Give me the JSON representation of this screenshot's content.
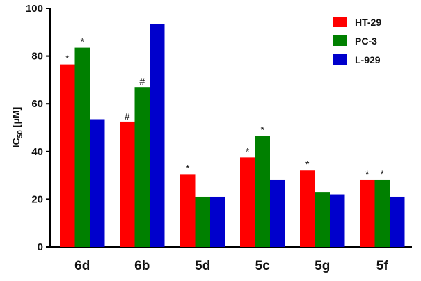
{
  "chart_data": {
    "type": "bar",
    "ylabel_main": "IC",
    "ylabel_sub": "50",
    "ylabel_unit": "[μM]",
    "ylim": [
      0,
      100
    ],
    "yticks": [
      "0",
      "20",
      "40",
      "60",
      "80",
      "100"
    ],
    "grid": false,
    "legend_position": "top-right",
    "categories": [
      "6d",
      "6b",
      "5d",
      "5c",
      "5g",
      "5f"
    ],
    "series": [
      {
        "name": "HT-29",
        "color": "#ff0000",
        "values": [
          76.5,
          52.5,
          30.5,
          37.5,
          32,
          28
        ],
        "annotations": [
          "*",
          "#",
          "*",
          "*",
          "*",
          "*"
        ]
      },
      {
        "name": "PC-3",
        "color": "#008000",
        "values": [
          83.5,
          67,
          21,
          46.5,
          23,
          28
        ],
        "annotations": [
          "*",
          "#",
          "",
          "*",
          "",
          "*"
        ]
      },
      {
        "name": "L-929",
        "color": "#0000cc",
        "values": [
          53.5,
          93.5,
          21,
          28,
          22,
          21
        ],
        "annotations": [
          "",
          "",
          "",
          "",
          "",
          ""
        ]
      }
    ]
  }
}
